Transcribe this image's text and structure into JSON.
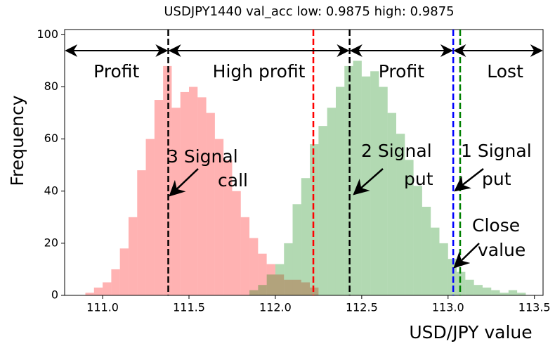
{
  "chart_data": {
    "type": "histogram",
    "title": "USDJPY1440 val_acc low: 0.9875 high: 0.9875",
    "xlabel": "USD/JPY value",
    "ylabel": "Frequency",
    "xlim": [
      110.78,
      113.55
    ],
    "ylim": [
      0,
      102
    ],
    "xticks": [
      {
        "value": 111,
        "label": "111.0"
      },
      111.5,
      {
        "value": 112,
        "label": "112.0"
      },
      112.5,
      {
        "value": 113,
        "label": "113.0"
      },
      113.5
    ],
    "yticks": [
      0,
      20,
      40,
      60,
      80,
      100
    ],
    "series": [
      {
        "color": "#ff0000",
        "opacity": 0.3,
        "bins": [
          110.9,
          110.95,
          111.0,
          111.05,
          111.1,
          111.15,
          111.2,
          111.25,
          111.3,
          111.35,
          111.4,
          111.45,
          111.5,
          111.55,
          111.6,
          111.65,
          111.7,
          111.75,
          111.8,
          111.85,
          111.9,
          111.95,
          112.0,
          112.05,
          112.1,
          112.15,
          112.2,
          112.25
        ],
        "values": [
          1,
          3,
          5,
          10,
          18,
          30,
          48,
          60,
          75,
          88,
          72,
          78,
          80,
          76,
          70,
          60,
          52,
          40,
          30,
          22,
          16,
          12,
          8,
          6,
          6,
          5,
          3
        ]
      },
      {
        "color": "#008000",
        "opacity": 0.3,
        "bins": [
          111.85,
          111.9,
          111.95,
          112.0,
          112.05,
          112.1,
          112.15,
          112.2,
          112.25,
          112.3,
          112.35,
          112.4,
          112.45,
          112.5,
          112.55,
          112.6,
          112.65,
          112.7,
          112.75,
          112.8,
          112.85,
          112.9,
          112.95,
          113.0,
          113.05,
          113.1,
          113.15,
          113.2,
          113.25,
          113.3,
          113.35,
          113.4,
          113.45
        ],
        "values": [
          2,
          4,
          8,
          12,
          20,
          35,
          45,
          58,
          65,
          72,
          80,
          88,
          90,
          84,
          86,
          80,
          70,
          62,
          52,
          42,
          34,
          26,
          20,
          14,
          9,
          6,
          4,
          3,
          2,
          1,
          2,
          1
        ]
      }
    ],
    "vlines": [
      {
        "x": 111.38,
        "color": "#000000"
      },
      {
        "x": 112.22,
        "color": "#ff0000"
      },
      {
        "x": 112.43,
        "color": "#000000"
      },
      {
        "x": 113.03,
        "color": "#0000ff"
      },
      {
        "x": 113.07,
        "color": "#008000"
      }
    ],
    "zones": [
      "Profit",
      "High profit",
      "Profit",
      "Lost"
    ],
    "annotations": [
      {
        "lines": [
          "3 Signal",
          "call"
        ]
      },
      {
        "lines": [
          "2 Signal",
          "put"
        ]
      },
      {
        "lines": [
          "1 Signal",
          "put"
        ]
      },
      {
        "lines": [
          "Close",
          "value"
        ]
      }
    ]
  }
}
